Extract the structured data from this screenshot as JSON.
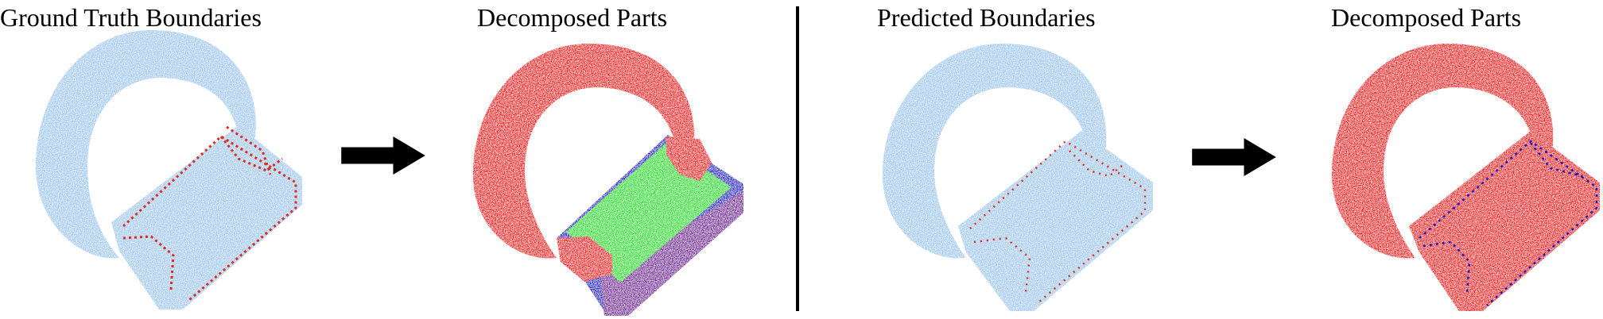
{
  "titles": {
    "ground_truth_boundaries": "Ground Truth Boundaries",
    "decomposed_parts_left": "Decomposed Parts",
    "predicted_boundaries": "Predicted Boundaries",
    "decomposed_parts_right": "Decomposed Parts"
  },
  "colors": {
    "point_cloud": "#a7cdee",
    "boundary": "#e02a1e",
    "part_handle": "#ee1111",
    "part_top": "#22e022",
    "part_side": "#1414c8",
    "part_bottom": "#7a1a9c",
    "arrow": "#000000",
    "divider": "#000000"
  },
  "icons": {
    "arrow_1": "right-arrow-icon",
    "arrow_2": "right-arrow-icon"
  }
}
